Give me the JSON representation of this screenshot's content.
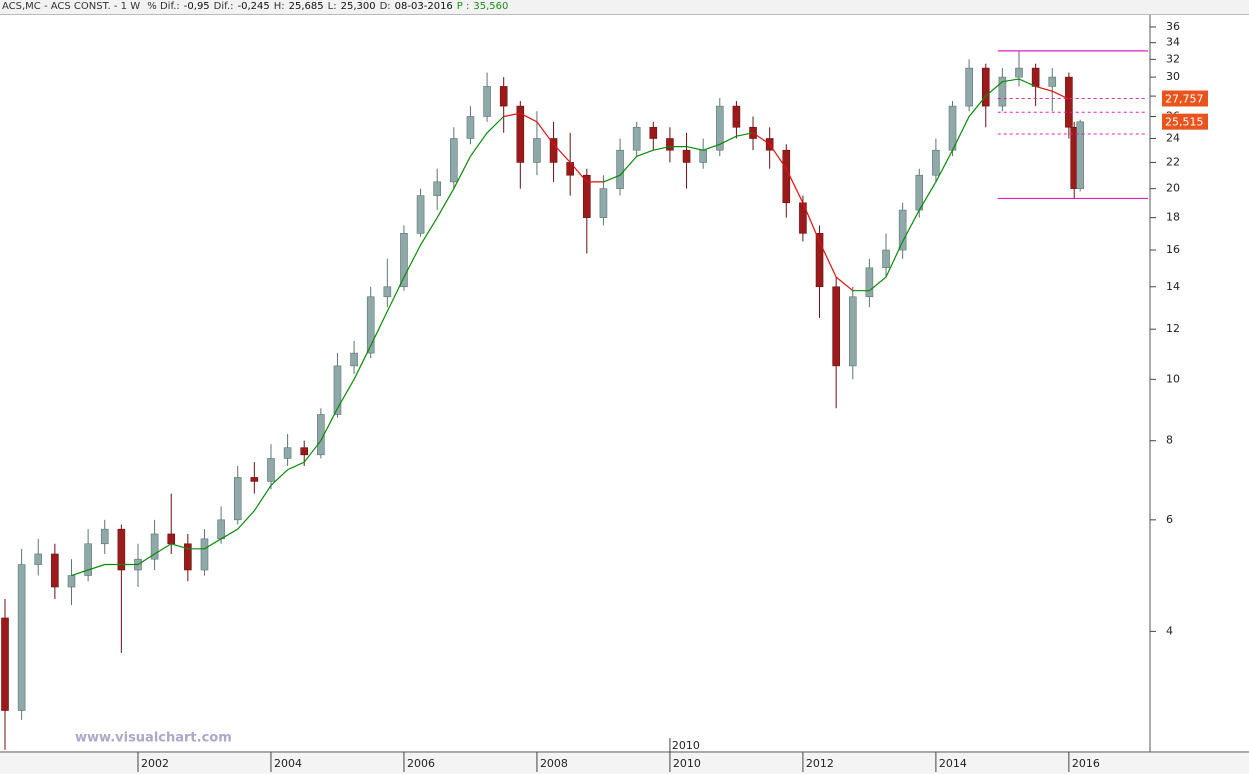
{
  "chart_data": {
    "type": "candlestick",
    "title": "ACS,MC - ACS CONST. - 1 W",
    "info": [
      {
        "label": "% Dif.:",
        "value": "-0,95"
      },
      {
        "label": "Dif.:",
        "value": "-0,245"
      },
      {
        "label": "H:",
        "value": "25,685"
      },
      {
        "label": "L:",
        "value": "25,300"
      },
      {
        "label": "D:",
        "value": "08-03-2016"
      },
      {
        "label": "P :",
        "value": "35,560"
      }
    ],
    "watermark": "www.visualchart.com",
    "log_scale": true,
    "xlim": [
      2000,
      2017.22
    ],
    "ylim": [
      2.58,
      37.6
    ],
    "xticks": [
      2002,
      2004,
      2006,
      2008,
      2010,
      2012,
      2014,
      2016
    ],
    "yticks": [
      4,
      6,
      8,
      10,
      12,
      14,
      16,
      18,
      20,
      22,
      24,
      26,
      28,
      30,
      32,
      34,
      36
    ],
    "cursor": 2010,
    "up_color": "#8fa8a8",
    "down_color": "#9b1b1b",
    "x": [
      2000,
      2000.25,
      2000.5,
      2000.75,
      2001,
      2001.25,
      2001.5,
      2001.75,
      2002,
      2002.25,
      2002.5,
      2002.75,
      2003,
      2003.25,
      2003.5,
      2003.75,
      2004,
      2004.25,
      2004.5,
      2004.75,
      2005,
      2005.25,
      2005.5,
      2005.75,
      2006,
      2006.25,
      2006.5,
      2006.75,
      2007,
      2007.25,
      2007.5,
      2007.75,
      2008,
      2008.25,
      2008.5,
      2008.75,
      2009,
      2009.25,
      2009.5,
      2009.75,
      2010,
      2010.25,
      2010.5,
      2010.75,
      2011,
      2011.25,
      2011.5,
      2011.75,
      2012,
      2012.25,
      2012.5,
      2012.75,
      2013,
      2013.25,
      2013.5,
      2013.75,
      2014,
      2014.25,
      2014.5,
      2014.75,
      2015,
      2015.25,
      2015.5,
      2015.75,
      2016,
      2016.08,
      2016.17
    ],
    "open": [
      4.2,
      3.0,
      5.1,
      5.3,
      4.7,
      4.9,
      5.5,
      5.8,
      5.0,
      5.2,
      5.7,
      5.5,
      5.0,
      5.6,
      6.0,
      7.0,
      6.9,
      7.5,
      7.8,
      7.6,
      8.8,
      10.5,
      11.0,
      13.5,
      14.0,
      17.0,
      19.5,
      20.5,
      24.0,
      26.0,
      29.0,
      27.0,
      22.0,
      24.0,
      22.0,
      21.0,
      18.0,
      20.0,
      23.0,
      25.0,
      24.0,
      23.0,
      22.0,
      23.0,
      27.0,
      25.0,
      24.0,
      23.0,
      19.0,
      17.0,
      14.0,
      10.5,
      13.5,
      15.0,
      16.0,
      18.5,
      21.0,
      23.0,
      27.0,
      31.0,
      27.0,
      30.0,
      31.0,
      29.0,
      30.0,
      25.0,
      20.0
    ],
    "high": [
      4.5,
      5.4,
      5.6,
      5.5,
      5.2,
      5.8,
      6.0,
      5.9,
      5.5,
      6.0,
      6.6,
      5.7,
      5.8,
      6.3,
      7.3,
      7.4,
      7.9,
      8.2,
      8.0,
      9.0,
      11.0,
      11.5,
      14.0,
      15.5,
      17.5,
      20.0,
      21.5,
      25.0,
      27.0,
      30.5,
      30.0,
      27.5,
      26.5,
      25.5,
      24.5,
      21.5,
      21.0,
      24.0,
      25.5,
      25.5,
      25.0,
      24.5,
      24.0,
      27.8,
      27.5,
      26.0,
      25.0,
      23.5,
      19.5,
      17.5,
      14.5,
      14.0,
      15.5,
      17.0,
      19.0,
      21.5,
      24.0,
      27.5,
      32.0,
      31.5,
      31.0,
      33.0,
      31.5,
      31.0,
      30.5,
      25.5,
      25.7
    ],
    "low": [
      2.6,
      2.9,
      4.9,
      4.5,
      4.4,
      4.8,
      5.3,
      3.7,
      4.7,
      5.0,
      5.3,
      4.8,
      4.9,
      5.5,
      5.9,
      6.6,
      6.7,
      7.3,
      7.3,
      7.5,
      8.7,
      10.2,
      10.8,
      13.0,
      13.8,
      16.8,
      18.5,
      20.0,
      23.5,
      25.5,
      24.5,
      20.0,
      21.0,
      20.5,
      19.5,
      15.8,
      17.5,
      19.5,
      22.5,
      23.0,
      22.0,
      20.0,
      21.5,
      22.5,
      24.0,
      23.0,
      21.5,
      18.0,
      16.5,
      12.5,
      9.0,
      10.0,
      13.0,
      14.5,
      15.5,
      18.0,
      20.5,
      22.5,
      26.5,
      25.0,
      26.5,
      29.0,
      27.0,
      26.5,
      24.0,
      19.3,
      19.8
    ],
    "close": [
      3.0,
      5.1,
      5.3,
      4.7,
      4.9,
      5.5,
      5.8,
      5.0,
      5.2,
      5.7,
      5.5,
      5.0,
      5.6,
      6.0,
      7.0,
      6.9,
      7.5,
      7.8,
      7.6,
      8.8,
      10.5,
      11.0,
      13.5,
      14.0,
      17.0,
      19.5,
      20.5,
      24.0,
      26.0,
      29.0,
      27.0,
      22.0,
      24.0,
      22.0,
      21.0,
      18.0,
      20.0,
      23.0,
      25.0,
      24.0,
      23.0,
      22.0,
      23.0,
      27.0,
      25.0,
      24.0,
      23.0,
      19.0,
      17.0,
      14.0,
      10.5,
      13.5,
      15.0,
      16.0,
      18.5,
      21.0,
      23.0,
      27.0,
      31.0,
      27.0,
      30.0,
      31.0,
      29.0,
      30.0,
      25.0,
      20.0,
      25.5
    ],
    "moving_averages": [
      {
        "color": "#0a8a0a",
        "values": [
          null,
          null,
          null,
          null,
          4.9,
          5.0,
          5.1,
          5.1,
          5.1,
          5.3,
          5.5,
          5.4,
          5.4,
          5.6,
          5.8,
          6.2,
          6.8,
          7.2,
          7.4,
          8.0,
          9.0,
          10.0,
          11.3,
          12.8,
          14.5,
          16.3,
          18.0,
          20.0,
          22.5,
          24.5,
          26.0,
          null,
          null,
          null,
          null,
          null,
          20.5,
          21.0,
          22.5,
          23.0,
          23.3,
          23.3,
          23.0,
          23.5,
          24.2,
          24.5,
          null,
          null,
          null,
          null,
          null,
          13.8,
          13.8,
          14.5,
          16.5,
          18.5,
          20.5,
          23.0,
          26.0,
          28.0,
          29.5,
          29.8,
          29.0,
          null,
          null,
          null,
          null
        ]
      },
      {
        "color": "#dd1111",
        "values": [
          null,
          null,
          null,
          null,
          null,
          null,
          null,
          null,
          null,
          null,
          null,
          null,
          null,
          null,
          null,
          null,
          null,
          null,
          null,
          null,
          null,
          null,
          null,
          null,
          null,
          null,
          null,
          null,
          null,
          null,
          26.0,
          26.3,
          25.5,
          23.5,
          22.0,
          20.5,
          20.5,
          null,
          null,
          null,
          null,
          null,
          null,
          null,
          null,
          24.5,
          23.5,
          21.5,
          19.0,
          16.5,
          14.5,
          13.8,
          null,
          null,
          null,
          null,
          null,
          null,
          null,
          null,
          null,
          null,
          29.0,
          28.5,
          27.7,
          null,
          null
        ]
      }
    ],
    "levels": {
      "from": 2014.93,
      "color": "#e020c0",
      "solid": [
        33.0,
        19.3
      ],
      "dashed": [
        27.757,
        26.4,
        24.4
      ]
    },
    "price_tags": [
      {
        "value": 27.757,
        "label": "27,757"
      },
      {
        "value": 25.515,
        "label": "25,515"
      }
    ],
    "tag_color": "#e8541c"
  }
}
